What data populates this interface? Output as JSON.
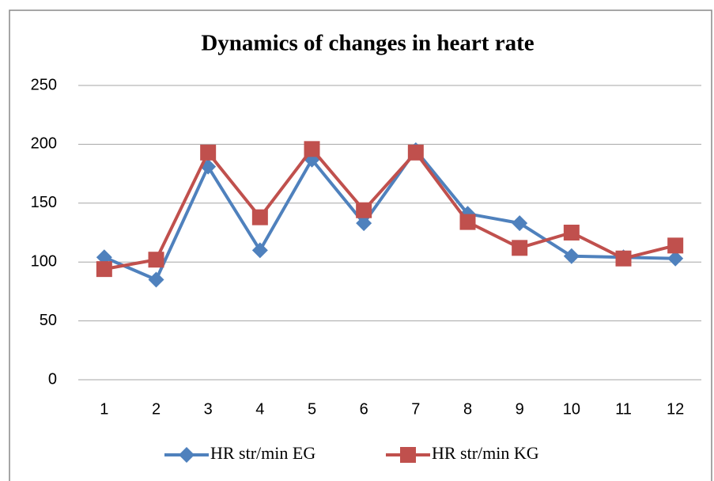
{
  "chart_data": {
    "type": "line",
    "title": "Dynamics of changes in heart rate",
    "categories": [
      "1",
      "2",
      "3",
      "4",
      "5",
      "6",
      "7",
      "8",
      "9",
      "10",
      "11",
      "12"
    ],
    "series": [
      {
        "name": "HR str/min EG",
        "color": "#4f81bd",
        "marker": "diamond",
        "values": [
          104,
          85,
          181,
          110,
          187,
          133,
          195,
          141,
          133,
          105,
          104,
          103
        ]
      },
      {
        "name": "HR str/min KG",
        "color": "#c0504d",
        "marker": "square",
        "values": [
          94,
          102,
          193,
          138,
          196,
          144,
          193,
          134,
          112,
          125,
          103,
          114
        ]
      }
    ],
    "ylim": [
      0,
      250
    ],
    "yticks": [
      0,
      50,
      100,
      150,
      200,
      250
    ],
    "grid": true,
    "legend": "bottom"
  }
}
